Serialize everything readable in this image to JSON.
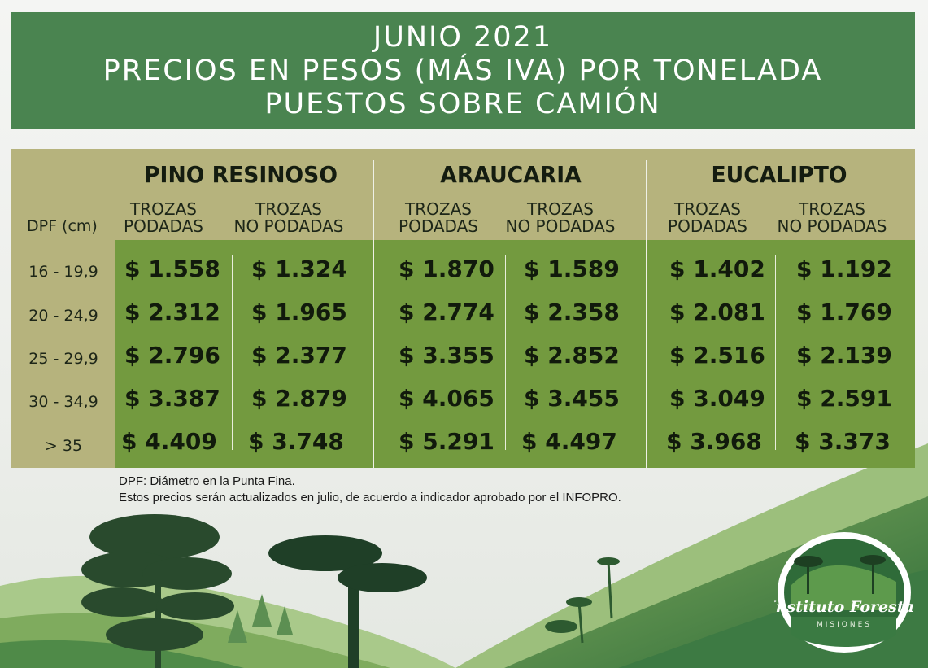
{
  "title": {
    "line1": "JUNIO 2021",
    "line2": "PRECIOS EN PESOS (MÁS IVA) POR TONELADA",
    "line3": "PUESTOS SOBRE CAMIÓN"
  },
  "table": {
    "dpf_header": "DPF (cm)",
    "species": [
      {
        "name": "PINO RESINOSO",
        "col1": {
          "l1": "TROZAS",
          "l2": "PODADAS"
        },
        "col2": {
          "l1": "TROZAS",
          "l2": "NO PODADAS"
        }
      },
      {
        "name": "ARAUCARIA",
        "col1": {
          "l1": "TROZAS",
          "l2": "PODADAS"
        },
        "col2": {
          "l1": "TROZAS",
          "l2": "NO PODADAS"
        }
      },
      {
        "name": "EUCALIPTO",
        "col1": {
          "l1": "TROZAS",
          "l2": "PODADAS"
        },
        "col2": {
          "l1": "TROZAS",
          "l2": "NO PODADAS"
        }
      }
    ],
    "rows": [
      {
        "dpf": "16 - 19,9",
        "prices": [
          "$ 1.558",
          "$ 1.324",
          "$ 1.870",
          "$ 1.589",
          "$ 1.402",
          "$ 1.192"
        ]
      },
      {
        "dpf": "20 - 24,9",
        "prices": [
          "$ 2.312",
          "$ 1.965",
          "$ 2.774",
          "$ 2.358",
          "$ 2.081",
          "$ 1.769"
        ]
      },
      {
        "dpf": "25 - 29,9",
        "prices": [
          "$ 2.796",
          "$ 2.377",
          "$ 3.355",
          "$ 2.852",
          "$ 2.516",
          "$ 2.139"
        ]
      },
      {
        "dpf": "30 - 34,9",
        "prices": [
          "$ 3.387",
          "$ 2.879",
          "$ 4.065",
          "$ 3.455",
          "$ 3.049",
          "$ 2.591"
        ]
      },
      {
        "dpf": "> 35",
        "prices": [
          "$ 4.409",
          "$ 3.748",
          "$ 5.291",
          "$ 4.497",
          "$ 3.968",
          "$ 3.373"
        ]
      }
    ]
  },
  "notes": {
    "line1": "DPF: Diámetro en la Punta Fina.",
    "line2": "Estos precios serán actualizados en julio, de acuerdo a indicador aprobado por el INFOPRO."
  },
  "logo": {
    "name": "Instituto Forestal",
    "subtitle": "MISIONES"
  },
  "colors": {
    "banner": "#4a8450",
    "table_bg": "#b6b37d",
    "price_bg": "#739a3f"
  }
}
